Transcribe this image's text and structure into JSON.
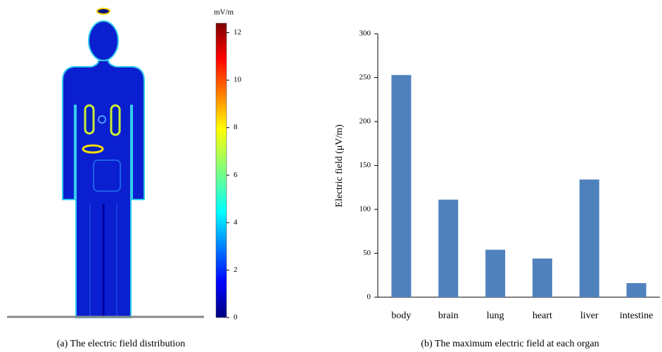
{
  "chart_data": [
    {
      "type": "heatmap",
      "colorbar_label": "mV/m",
      "clim": [
        0,
        12.4
      ],
      "cticks": [
        0,
        2,
        4,
        6,
        8,
        10,
        12
      ],
      "caption": "(a)  The electric field distribution"
    },
    {
      "type": "bar",
      "ylabel": "Electric field (μV/m)",
      "categories": [
        "body",
        "brain",
        "lung",
        "heart",
        "liver",
        "intestine"
      ],
      "values": [
        253,
        111,
        54,
        44,
        134,
        16
      ],
      "color": "#4f81bd",
      "ylim": [
        0,
        300
      ],
      "yticks": [
        0,
        50,
        100,
        150,
        200,
        250,
        300
      ],
      "caption": "(b) The maximum electric field at each organ"
    }
  ]
}
